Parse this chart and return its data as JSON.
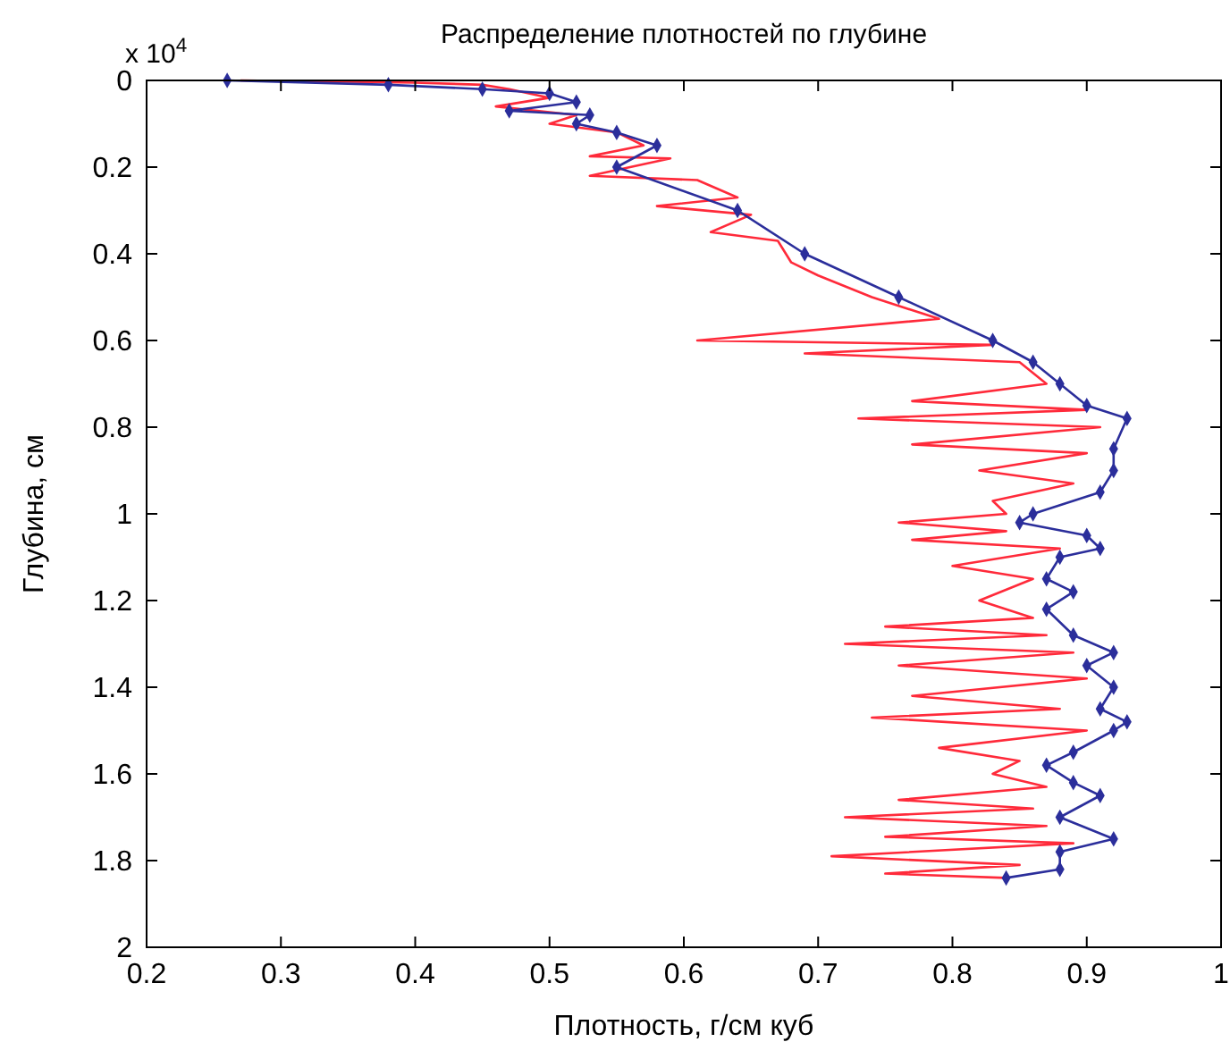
{
  "chart_data": {
    "type": "line",
    "title": "Распределение плотностей по глубине",
    "xlabel": "Плотность, г/см куб",
    "ylabel": "Глубина, см",
    "annotations": [
      "x 10$^{4}$"
    ],
    "xlim": [
      0.2,
      1
    ],
    "xticks": [
      0.2,
      0.3,
      0.4,
      0.5,
      0.6,
      0.7,
      0.8,
      0.9,
      1
    ],
    "ylim": [
      2,
      0
    ],
    "yticks": [
      0,
      0.2,
      0.4,
      0.6,
      0.8,
      1,
      1.2,
      1.4,
      1.6,
      1.8,
      2
    ],
    "grid": false,
    "series": [
      {
        "color": "#ff2a3a",
        "marker": "none",
        "line_style": "solid",
        "x": [
          0.27,
          0.4,
          0.45,
          0.47,
          0.5,
          0.46,
          0.52,
          0.5,
          0.55,
          0.57,
          0.53,
          0.59,
          0.53,
          0.61,
          0.64,
          0.58,
          0.65,
          0.62,
          0.67,
          0.68,
          0.7,
          0.74,
          0.79,
          0.61,
          0.83,
          0.69,
          0.85,
          0.87,
          0.77,
          0.9,
          0.73,
          0.91,
          0.77,
          0.9,
          0.82,
          0.89,
          0.83,
          0.84,
          0.76,
          0.84,
          0.77,
          0.88,
          0.8,
          0.86,
          0.82,
          0.86,
          0.75,
          0.87,
          0.72,
          0.89,
          0.76,
          0.9,
          0.77,
          0.88,
          0.74,
          0.9,
          0.79,
          0.85,
          0.83,
          0.87,
          0.76,
          0.86,
          0.72,
          0.87,
          0.75,
          0.89,
          0.71,
          0.85,
          0.75,
          0.84
        ],
        "values": [
          0,
          0.005,
          0.01,
          0.02,
          0.04,
          0.06,
          0.08,
          0.1,
          0.12,
          0.15,
          0.175,
          0.18,
          0.22,
          0.23,
          0.27,
          0.29,
          0.31,
          0.35,
          0.37,
          0.42,
          0.45,
          0.5,
          0.55,
          0.6,
          0.61,
          0.63,
          0.65,
          0.7,
          0.74,
          0.76,
          0.78,
          0.8,
          0.84,
          0.86,
          0.9,
          0.93,
          0.97,
          1.0,
          1.02,
          1.04,
          1.06,
          1.08,
          1.12,
          1.15,
          1.2,
          1.24,
          1.26,
          1.28,
          1.3,
          1.32,
          1.35,
          1.38,
          1.42,
          1.45,
          1.47,
          1.5,
          1.54,
          1.57,
          1.6,
          1.63,
          1.66,
          1.68,
          1.7,
          1.72,
          1.745,
          1.76,
          1.79,
          1.81,
          1.83,
          1.84
        ]
      },
      {
        "color": "#2b2e9b",
        "marker": "diamond",
        "line_style": "solid",
        "x": [
          0.26,
          0.38,
          0.45,
          0.5,
          0.52,
          0.47,
          0.53,
          0.52,
          0.55,
          0.58,
          0.55,
          0.64,
          0.69,
          0.76,
          0.83,
          0.86,
          0.88,
          0.9,
          0.93,
          0.92,
          0.92,
          0.91,
          0.86,
          0.85,
          0.9,
          0.91,
          0.88,
          0.87,
          0.89,
          0.87,
          0.89,
          0.92,
          0.9,
          0.92,
          0.91,
          0.93,
          0.92,
          0.89,
          0.87,
          0.89,
          0.91,
          0.88,
          0.92,
          0.88,
          0.88,
          0.84
        ],
        "values": [
          0,
          0.01,
          0.02,
          0.03,
          0.05,
          0.07,
          0.08,
          0.1,
          0.12,
          0.15,
          0.2,
          0.3,
          0.4,
          0.5,
          0.6,
          0.65,
          0.7,
          0.75,
          0.78,
          0.85,
          0.9,
          0.95,
          1.0,
          1.02,
          1.05,
          1.08,
          1.1,
          1.15,
          1.18,
          1.22,
          1.28,
          1.32,
          1.35,
          1.4,
          1.45,
          1.48,
          1.5,
          1.55,
          1.58,
          1.62,
          1.65,
          1.7,
          1.75,
          1.78,
          1.82,
          1.84
        ]
      }
    ]
  }
}
